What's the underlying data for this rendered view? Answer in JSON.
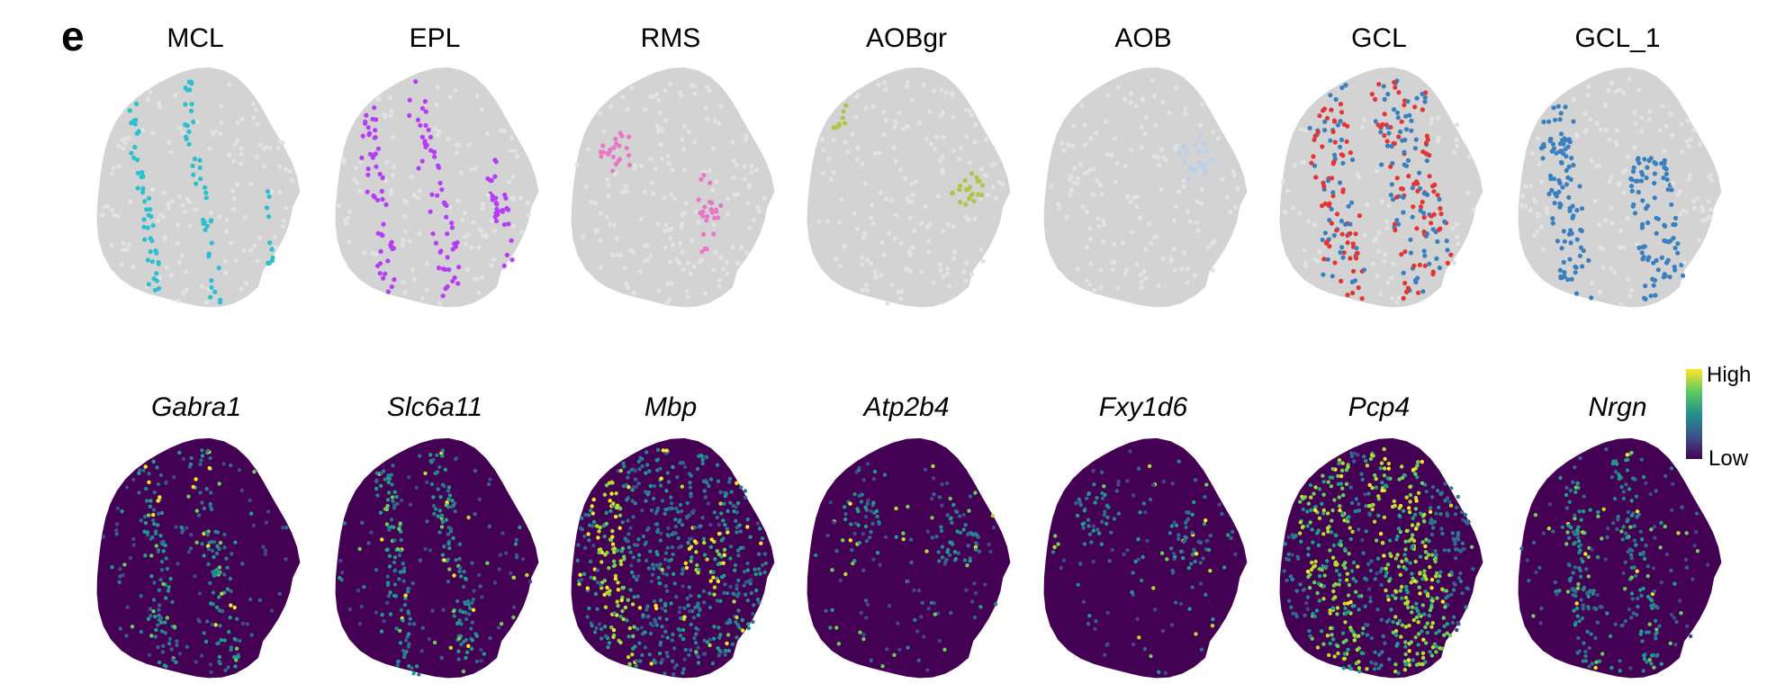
{
  "panel_letter": "e",
  "colors": {
    "background_tissue": "#d3d3d3",
    "low_expression": "#440154",
    "high_expression": "#fde725"
  },
  "chart_data": [
    {
      "type": "scatter",
      "row": "clusters",
      "panels": [
        {
          "label": "MCL",
          "highlight_color": "#2bbfd0",
          "pattern": "thin-bands"
        },
        {
          "label": "EPL",
          "highlight_color": "#b43df5",
          "pattern": "bands"
        },
        {
          "label": "RMS",
          "highlight_color": "#e878c5",
          "pattern": "branch"
        },
        {
          "label": "AOBgr",
          "highlight_color": "#b0c448",
          "pattern": "two-patches"
        },
        {
          "label": "AOB",
          "highlight_color": "#b8d0ee",
          "pattern": "single-patch"
        },
        {
          "label": "GCL",
          "highlight_color": "#e53434",
          "second_color": "#3a7fc0",
          "pattern": "dual-bands"
        },
        {
          "label": "GCL_1",
          "highlight_color": "#3a7fc0",
          "pattern": "wide-bands"
        }
      ]
    },
    {
      "type": "scatter",
      "row": "gene-expression",
      "colorbar": {
        "high_label": "High",
        "low_label": "Low",
        "colormap": "viridis"
      },
      "panels": [
        {
          "label": "Gabra1",
          "pattern": "sparse-bands"
        },
        {
          "label": "Slc6a11",
          "pattern": "sparse-bands"
        },
        {
          "label": "Mbp",
          "pattern": "branch-rich"
        },
        {
          "label": "Atp2b4",
          "pattern": "sparse-patch"
        },
        {
          "label": "Fxy1d6",
          "pattern": "sparse-patch"
        },
        {
          "label": "Pcp4",
          "pattern": "broad-bands"
        },
        {
          "label": "Nrgn",
          "pattern": "sparse-bands"
        }
      ]
    }
  ]
}
